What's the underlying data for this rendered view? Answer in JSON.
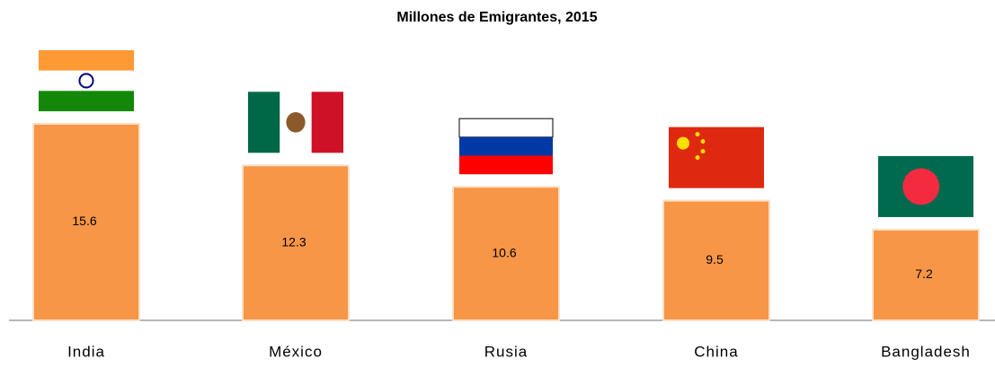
{
  "chart_data": {
    "type": "bar",
    "title": "Millones de  Emigrantes, 2015",
    "categories": [
      "India",
      "México",
      "Rusia",
      "China",
      "Bangladesh"
    ],
    "values": [
      15.6,
      12.3,
      10.6,
      9.5,
      7.2
    ],
    "color": "#f79646",
    "ylim": [
      0,
      25
    ]
  }
}
